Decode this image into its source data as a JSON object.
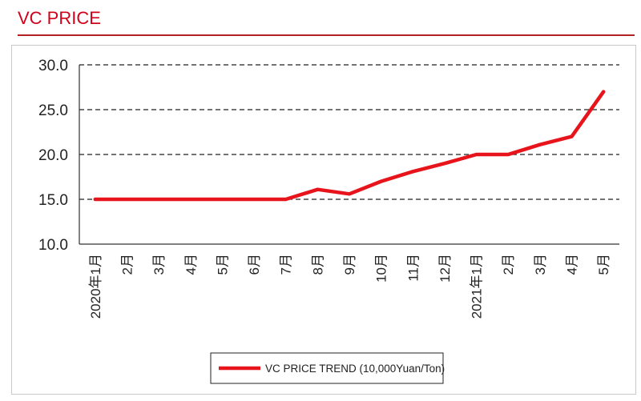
{
  "header": {
    "title": "VC PRICE"
  },
  "chart_data": {
    "type": "line",
    "categories": [
      "2020年1月",
      "2月",
      "3月",
      "4月",
      "5月",
      "6月",
      "7月",
      "8月",
      "9月",
      "10月",
      "11月",
      "12月",
      "2021年1月",
      "2月",
      "3月",
      "4月",
      "5月"
    ],
    "series": [
      {
        "name": "VC PRICE TREND (10,000Yuan/Ton)",
        "values": [
          15,
          15,
          15,
          15,
          15,
          15,
          15,
          16.1,
          15.6,
          17,
          18.1,
          19,
          20,
          20,
          21.1,
          22,
          27
        ]
      }
    ],
    "ylim": [
      10,
      30
    ],
    "yticks": [
      "10.0",
      "15.0",
      "20.0",
      "25.0",
      "30.0"
    ],
    "grid": "horizontal-dashed",
    "legend": "bottom-center",
    "color": "#e8141b",
    "title": "",
    "xlabel": "",
    "ylabel": ""
  }
}
